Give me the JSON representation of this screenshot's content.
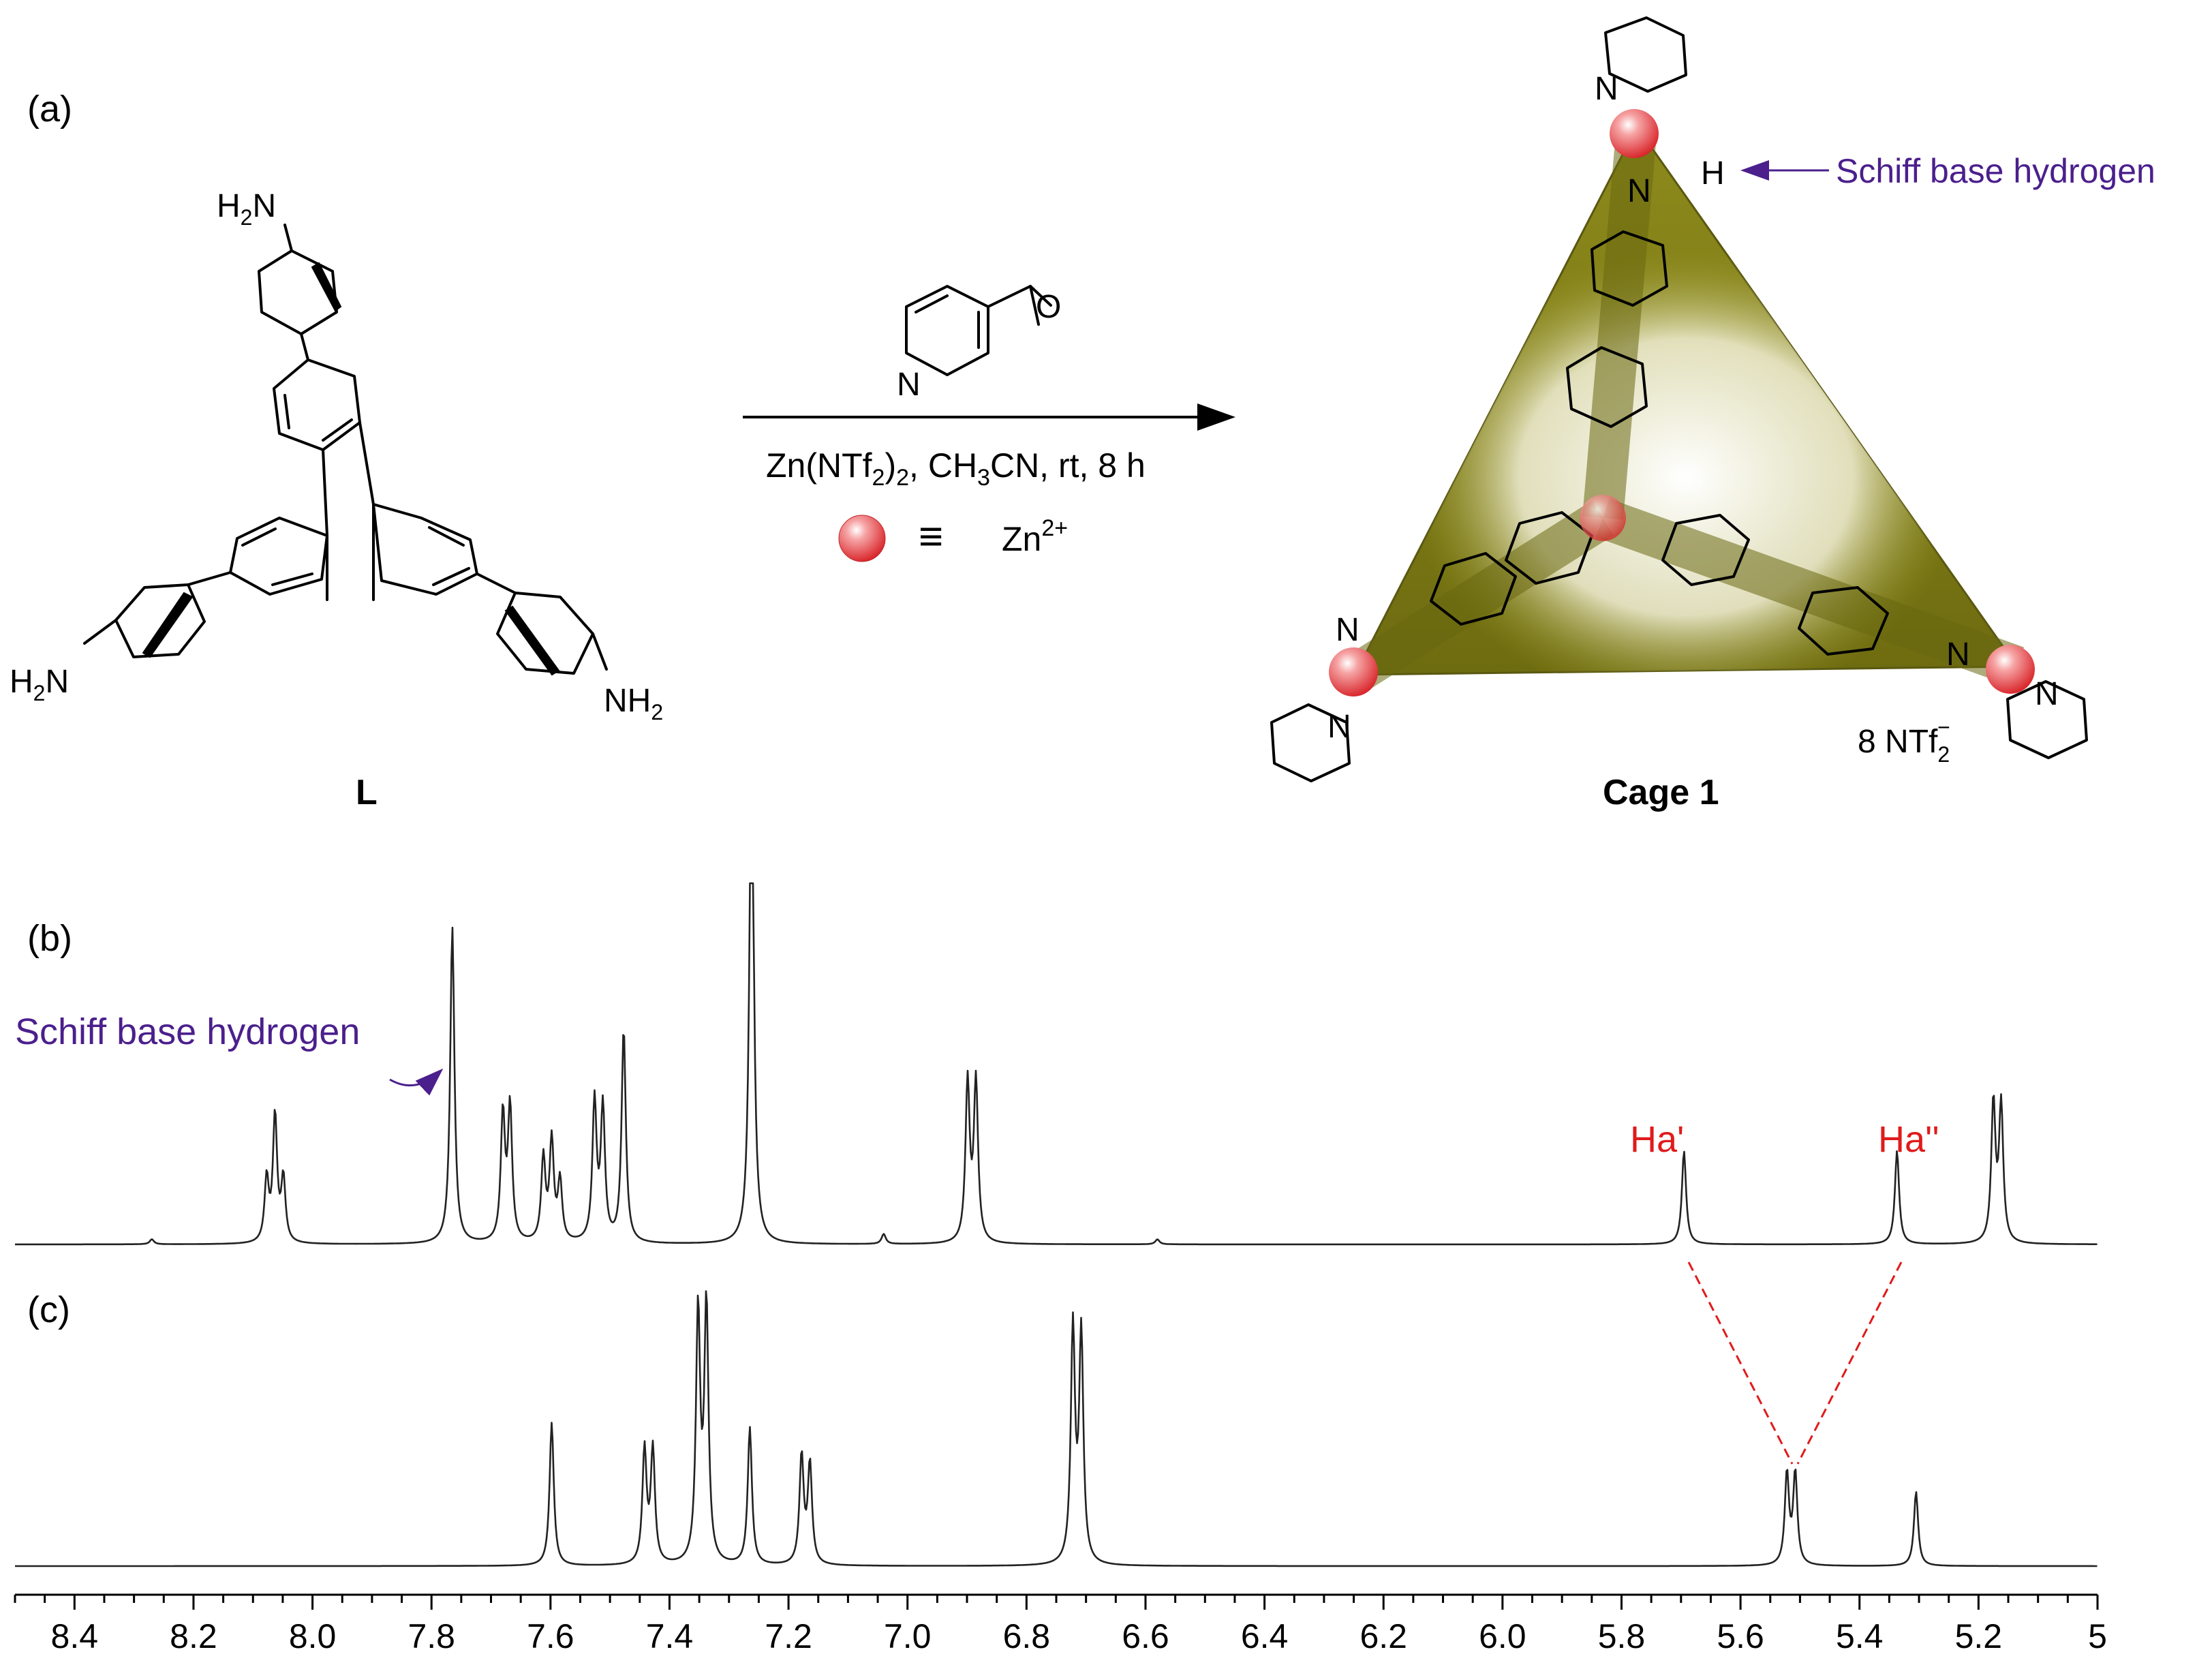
{
  "panels": {
    "a": "(a)",
    "b": "(b)",
    "c": "(c)"
  },
  "scheme": {
    "ligand_label": "L",
    "cage_label": "Cage 1",
    "reagent_conditions": {
      "prefix": "Zn(NTf",
      "sub1": "2",
      "mid": ")",
      "sub2": "2",
      "rest1": ", CH",
      "sub3": "3",
      "rest2": "CN, rt, 8 h"
    },
    "legend_equiv": "≡",
    "legend_ion": {
      "base": "Zn",
      "sup": "2+"
    },
    "counterion": {
      "base": "8 NTf",
      "sub": "2",
      "sup": "−"
    },
    "schiff_annotation": "Schiff base hydrogen",
    "atoms": {
      "amine_h2n": {
        "base": "H",
        "sub": "2",
        "tail": "N"
      },
      "amine_nh2": {
        "base": "NH",
        "sub": "2"
      },
      "nitrogen": "N",
      "oxygen": "O",
      "hydrogen": "H"
    },
    "colors": {
      "cage_face": "#7f7d12",
      "cage_highlight": "#ffffff",
      "zinc_sphere": "#e8393b",
      "annotation": "#4b1f8c",
      "peak_label": "#e01b1b"
    }
  },
  "spectrum_annotations": {
    "schiff_label": "Schiff base hydrogen",
    "ha_prime": "Ha'",
    "ha_double_prime": "Ha''"
  },
  "chart_data": [
    {
      "type": "line",
      "panel": "(b)",
      "xlabel": "",
      "ylabel": "",
      "xlim": [
        8.5,
        5.0
      ],
      "x_reversed": true,
      "x_ticks": [
        "8.4",
        "8.2",
        "8.0",
        "7.8",
        "7.6",
        "7.4",
        "7.2",
        "7.0",
        "6.8",
        "6.6",
        "6.4",
        "6.2",
        "6.0",
        "5.8",
        "5.6",
        "5.4",
        "5.2",
        "5"
      ],
      "peaks": [
        {
          "ppm": 8.077,
          "intensity": 0.19
        },
        {
          "ppm": 8.063,
          "intensity": 0.38
        },
        {
          "ppm": 8.049,
          "intensity": 0.19
        },
        {
          "ppm": 7.765,
          "intensity": 0.95
        },
        {
          "ppm": 7.68,
          "intensity": 0.38
        },
        {
          "ppm": 7.668,
          "intensity": 0.4
        },
        {
          "ppm": 7.612,
          "intensity": 0.25
        },
        {
          "ppm": 7.598,
          "intensity": 0.3
        },
        {
          "ppm": 7.584,
          "intensity": 0.18
        },
        {
          "ppm": 7.526,
          "intensity": 0.42
        },
        {
          "ppm": 7.512,
          "intensity": 0.4
        },
        {
          "ppm": 7.477,
          "intensity": 0.64
        },
        {
          "ppm": 7.262,
          "intensity": 1.6
        },
        {
          "ppm": 6.899,
          "intensity": 0.48
        },
        {
          "ppm": 6.885,
          "intensity": 0.48
        },
        {
          "ppm": 7.04,
          "intensity": 0.03
        },
        {
          "ppm": 8.27,
          "intensity": 0.015
        },
        {
          "ppm": 6.58,
          "intensity": 0.015
        },
        {
          "ppm": 5.695,
          "intensity": 0.28
        },
        {
          "ppm": 5.337,
          "intensity": 0.28
        },
        {
          "ppm": 5.175,
          "intensity": 0.42
        },
        {
          "ppm": 5.162,
          "intensity": 0.41
        }
      ]
    },
    {
      "type": "line",
      "panel": "(c)",
      "xlabel": "",
      "ylabel": "",
      "xlim": [
        8.5,
        5.0
      ],
      "x_reversed": true,
      "x_ticks": [
        "8.4",
        "8.2",
        "8.0",
        "7.8",
        "7.6",
        "7.4",
        "7.2",
        "7.0",
        "6.8",
        "6.6",
        "6.4",
        "6.2",
        "6.0",
        "5.8",
        "5.6",
        "5.4",
        "5.2",
        "5"
      ],
      "peaks": [
        {
          "ppm": 7.598,
          "intensity": 0.5
        },
        {
          "ppm": 7.442,
          "intensity": 0.4
        },
        {
          "ppm": 7.428,
          "intensity": 0.4
        },
        {
          "ppm": 7.352,
          "intensity": 0.88
        },
        {
          "ppm": 7.338,
          "intensity": 0.9
        },
        {
          "ppm": 7.265,
          "intensity": 0.48
        },
        {
          "ppm": 7.178,
          "intensity": 0.38
        },
        {
          "ppm": 7.164,
          "intensity": 0.35
        },
        {
          "ppm": 6.722,
          "intensity": 0.82
        },
        {
          "ppm": 6.708,
          "intensity": 0.8
        },
        {
          "ppm": 5.522,
          "intensity": 0.32
        },
        {
          "ppm": 5.508,
          "intensity": 0.32
        },
        {
          "ppm": 5.305,
          "intensity": 0.26
        }
      ]
    }
  ]
}
